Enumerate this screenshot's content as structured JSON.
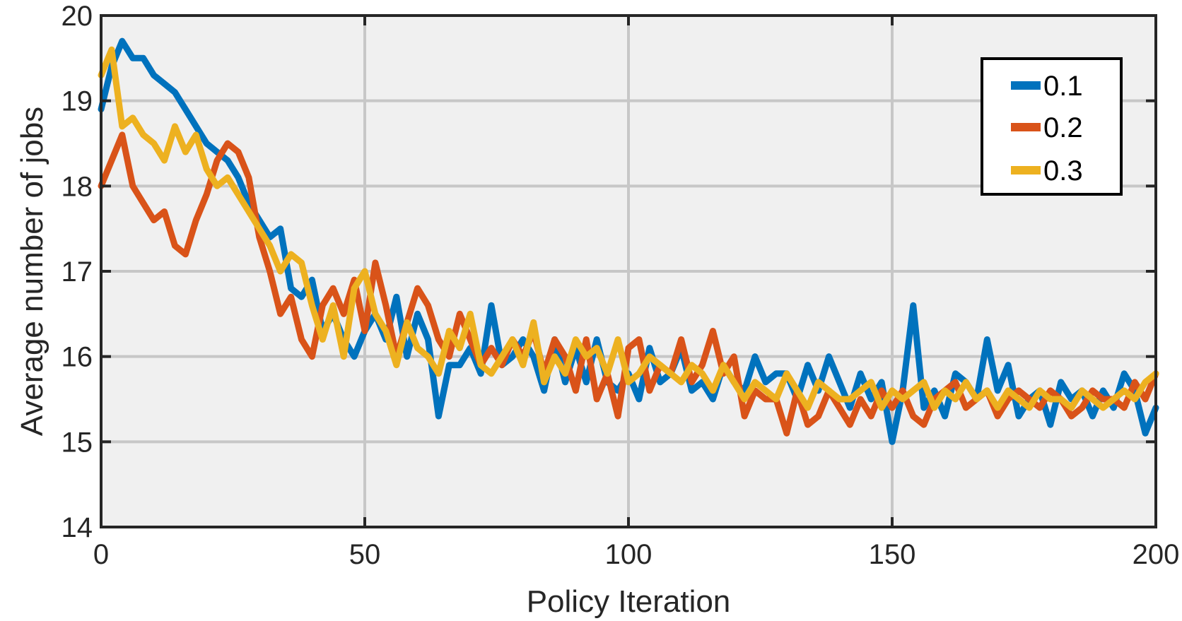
{
  "chart_data": {
    "type": "line",
    "title": "",
    "xlabel": "Policy Iteration",
    "ylabel": "Average number of jobs",
    "xlim": [
      0,
      200
    ],
    "ylim": [
      14,
      20
    ],
    "xticks": [
      0,
      50,
      100,
      150,
      200
    ],
    "yticks": [
      14,
      15,
      16,
      17,
      18,
      19,
      20
    ],
    "grid": true,
    "legend_position": "top-right",
    "series": [
      {
        "name": "0.1",
        "color": "#0072BD",
        "x": [
          0,
          2,
          4,
          6,
          8,
          10,
          12,
          14,
          16,
          18,
          20,
          22,
          24,
          26,
          28,
          30,
          32,
          34,
          36,
          38,
          40,
          42,
          44,
          46,
          48,
          50,
          52,
          54,
          56,
          58,
          60,
          62,
          64,
          66,
          68,
          70,
          72,
          74,
          76,
          78,
          80,
          82,
          84,
          86,
          88,
          90,
          92,
          94,
          96,
          98,
          100,
          102,
          104,
          106,
          108,
          110,
          112,
          114,
          116,
          118,
          120,
          122,
          124,
          126,
          128,
          130,
          132,
          134,
          136,
          138,
          140,
          142,
          144,
          146,
          148,
          150,
          152,
          154,
          156,
          158,
          160,
          162,
          164,
          166,
          168,
          170,
          172,
          174,
          176,
          178,
          180,
          182,
          184,
          186,
          188,
          190,
          192,
          194,
          196,
          198,
          200
        ],
        "values": [
          18.9,
          19.4,
          19.7,
          19.5,
          19.5,
          19.3,
          19.2,
          19.1,
          18.9,
          18.7,
          18.5,
          18.4,
          18.3,
          18.1,
          17.8,
          17.6,
          17.4,
          17.5,
          16.8,
          16.7,
          16.9,
          16.3,
          16.5,
          16.2,
          16.0,
          16.3,
          16.5,
          16.2,
          16.7,
          16.0,
          16.5,
          16.2,
          15.3,
          15.9,
          15.9,
          16.1,
          15.8,
          16.6,
          15.9,
          16.0,
          16.2,
          16.0,
          15.6,
          16.2,
          15.7,
          16.1,
          15.7,
          16.2,
          15.7,
          15.6,
          15.8,
          15.5,
          16.1,
          15.7,
          15.8,
          16.1,
          15.6,
          15.7,
          15.5,
          15.9,
          15.7,
          15.6,
          16.0,
          15.7,
          15.8,
          15.8,
          15.5,
          15.9,
          15.6,
          16.0,
          15.7,
          15.4,
          15.8,
          15.5,
          15.7,
          15.0,
          15.6,
          16.6,
          15.4,
          15.6,
          15.3,
          15.8,
          15.7,
          15.5,
          16.2,
          15.6,
          15.9,
          15.3,
          15.5,
          15.6,
          15.2,
          15.7,
          15.5,
          15.6,
          15.3,
          15.6,
          15.4,
          15.8,
          15.6,
          15.1,
          15.4
        ]
      },
      {
        "name": "0.2",
        "color": "#D95319",
        "x": [
          0,
          2,
          4,
          6,
          8,
          10,
          12,
          14,
          16,
          18,
          20,
          22,
          24,
          26,
          28,
          30,
          32,
          34,
          36,
          38,
          40,
          42,
          44,
          46,
          48,
          50,
          52,
          54,
          56,
          58,
          60,
          62,
          64,
          66,
          68,
          70,
          72,
          74,
          76,
          78,
          80,
          82,
          84,
          86,
          88,
          90,
          92,
          94,
          96,
          98,
          100,
          102,
          104,
          106,
          108,
          110,
          112,
          114,
          116,
          118,
          120,
          122,
          124,
          126,
          128,
          130,
          132,
          134,
          136,
          138,
          140,
          142,
          144,
          146,
          148,
          150,
          152,
          154,
          156,
          158,
          160,
          162,
          164,
          166,
          168,
          170,
          172,
          174,
          176,
          178,
          180,
          182,
          184,
          186,
          188,
          190,
          192,
          194,
          196,
          198,
          200
        ],
        "values": [
          18.0,
          18.3,
          18.6,
          18.0,
          17.8,
          17.6,
          17.7,
          17.3,
          17.2,
          17.6,
          17.9,
          18.3,
          18.5,
          18.4,
          18.1,
          17.4,
          17.0,
          16.5,
          16.7,
          16.2,
          16.0,
          16.6,
          16.8,
          16.5,
          16.9,
          16.3,
          17.1,
          16.6,
          16.0,
          16.4,
          16.8,
          16.6,
          16.2,
          16.0,
          16.5,
          16.2,
          15.9,
          16.1,
          15.9,
          16.2,
          16.0,
          16.3,
          15.8,
          16.2,
          16.0,
          15.6,
          16.2,
          15.5,
          15.8,
          15.3,
          16.1,
          16.2,
          15.6,
          15.9,
          15.8,
          16.2,
          15.7,
          15.9,
          16.3,
          15.8,
          16.0,
          15.3,
          15.6,
          15.5,
          15.5,
          15.1,
          15.6,
          15.2,
          15.3,
          15.6,
          15.4,
          15.2,
          15.5,
          15.3,
          15.6,
          15.4,
          15.6,
          15.3,
          15.2,
          15.5,
          15.6,
          15.7,
          15.4,
          15.5,
          15.6,
          15.3,
          15.5,
          15.6,
          15.5,
          15.4,
          15.6,
          15.5,
          15.3,
          15.4,
          15.6,
          15.5,
          15.5,
          15.4,
          15.7,
          15.5,
          15.8
        ]
      },
      {
        "name": "0.3",
        "color": "#EDB120",
        "x": [
          0,
          2,
          4,
          6,
          8,
          10,
          12,
          14,
          16,
          18,
          20,
          22,
          24,
          26,
          28,
          30,
          32,
          34,
          36,
          38,
          40,
          42,
          44,
          46,
          48,
          50,
          52,
          54,
          56,
          58,
          60,
          62,
          64,
          66,
          68,
          70,
          72,
          74,
          76,
          78,
          80,
          82,
          84,
          86,
          88,
          90,
          92,
          94,
          96,
          98,
          100,
          102,
          104,
          106,
          108,
          110,
          112,
          114,
          116,
          118,
          120,
          122,
          124,
          126,
          128,
          130,
          132,
          134,
          136,
          138,
          140,
          142,
          144,
          146,
          148,
          150,
          152,
          154,
          156,
          158,
          160,
          162,
          164,
          166,
          168,
          170,
          172,
          174,
          176,
          178,
          180,
          182,
          184,
          186,
          188,
          190,
          192,
          194,
          196,
          198,
          200
        ],
        "values": [
          19.3,
          19.6,
          18.7,
          18.8,
          18.6,
          18.5,
          18.3,
          18.7,
          18.4,
          18.6,
          18.2,
          18.0,
          18.1,
          17.9,
          17.7,
          17.5,
          17.3,
          17.0,
          17.2,
          17.1,
          16.6,
          16.2,
          16.6,
          16.0,
          16.8,
          17.0,
          16.5,
          16.3,
          15.9,
          16.4,
          16.1,
          16.0,
          15.8,
          16.3,
          16.1,
          16.5,
          15.9,
          15.8,
          16.0,
          16.2,
          15.9,
          16.4,
          15.7,
          16.0,
          15.8,
          16.2,
          16.0,
          16.1,
          15.8,
          16.2,
          15.7,
          15.8,
          16.0,
          15.9,
          15.8,
          15.7,
          15.9,
          15.8,
          15.6,
          15.9,
          15.7,
          15.5,
          15.7,
          15.6,
          15.5,
          15.8,
          15.6,
          15.4,
          15.7,
          15.6,
          15.5,
          15.5,
          15.6,
          15.7,
          15.4,
          15.6,
          15.5,
          15.6,
          15.7,
          15.4,
          15.6,
          15.5,
          15.7,
          15.5,
          15.6,
          15.4,
          15.6,
          15.5,
          15.4,
          15.6,
          15.5,
          15.5,
          15.4,
          15.6,
          15.5,
          15.4,
          15.5,
          15.6,
          15.5,
          15.7,
          15.8
        ]
      }
    ]
  }
}
